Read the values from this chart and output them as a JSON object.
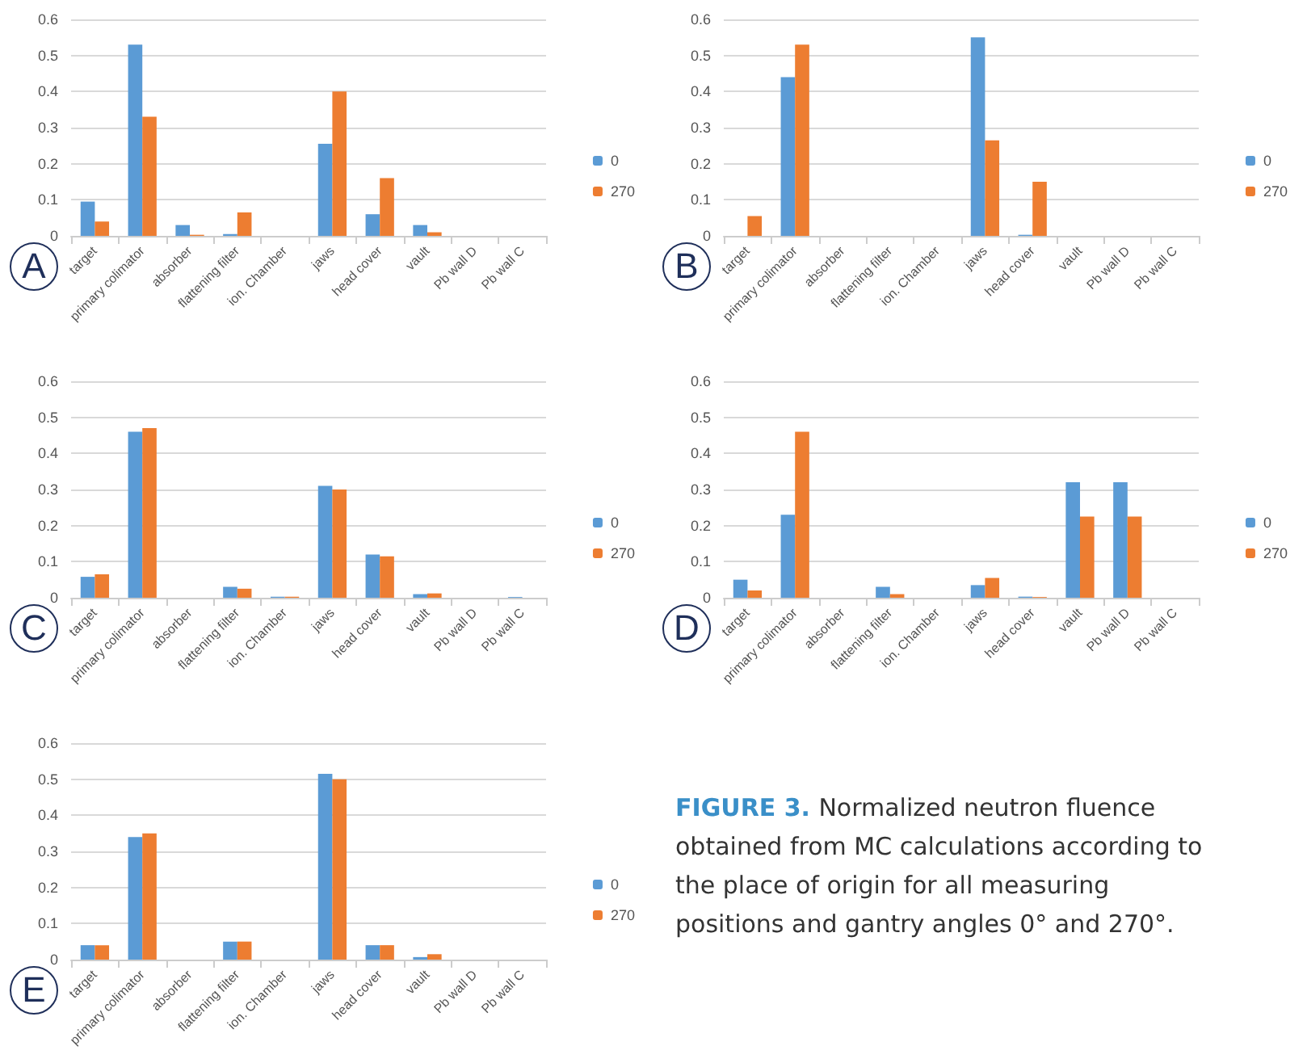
{
  "chart_data": [
    {
      "type": "bar",
      "title": "A",
      "categories": [
        "target",
        "primary colimator",
        "absorber",
        "flattening filter",
        "ion. Chamber",
        "jaws",
        "head cover",
        "vault",
        "Pb wall D",
        "Pb wall C"
      ],
      "series": [
        {
          "name": "0",
          "color": "#5b9bd5",
          "values": [
            0.095,
            0.53,
            0.03,
            0.005,
            0,
            0.255,
            0.06,
            0.03,
            0,
            0
          ]
        },
        {
          "name": "270",
          "color": "#ed7d31",
          "values": [
            0.04,
            0.33,
            0.003,
            0.065,
            0,
            0.4,
            0.16,
            0.01,
            0,
            0
          ]
        }
      ],
      "ylim": [
        0,
        0.6
      ],
      "yticks": [
        0,
        0.1,
        0.2,
        0.3,
        0.4,
        0.5,
        0.6
      ],
      "grid": "y",
      "legend": "right"
    },
    {
      "type": "bar",
      "title": "B",
      "categories": [
        "target",
        "primary colimator",
        "absorber",
        "flattening filter",
        "ion. Chamber",
        "jaws",
        "head cover",
        "vault",
        "Pb wall D",
        "Pb wall C"
      ],
      "series": [
        {
          "name": "0",
          "color": "#5b9bd5",
          "values": [
            0,
            0.44,
            0,
            0,
            0,
            0.55,
            0.003,
            0,
            0,
            0
          ]
        },
        {
          "name": "270",
          "color": "#ed7d31",
          "values": [
            0.055,
            0.53,
            0,
            0,
            0,
            0.265,
            0.15,
            0,
            0,
            0
          ]
        }
      ],
      "ylim": [
        0,
        0.6
      ],
      "yticks": [
        0,
        0.1,
        0.2,
        0.3,
        0.4,
        0.5,
        0.6
      ],
      "grid": "y",
      "legend": "right"
    },
    {
      "type": "bar",
      "title": "C",
      "categories": [
        "target",
        "primary colimator",
        "absorber",
        "flattening filter",
        "ion. Chamber",
        "jaws",
        "head cover",
        "vault",
        "Pb wall D",
        "Pb wall C"
      ],
      "series": [
        {
          "name": "0",
          "color": "#5b9bd5",
          "values": [
            0.058,
            0.46,
            0,
            0.03,
            0.003,
            0.31,
            0.12,
            0.01,
            0,
            0.002
          ]
        },
        {
          "name": "270",
          "color": "#ed7d31",
          "values": [
            0.065,
            0.47,
            0,
            0.025,
            0.003,
            0.3,
            0.115,
            0.012,
            0,
            0
          ]
        }
      ],
      "ylim": [
        0,
        0.6
      ],
      "yticks": [
        0,
        0.1,
        0.2,
        0.3,
        0.4,
        0.5,
        0.6
      ],
      "grid": "y",
      "legend": "right"
    },
    {
      "type": "bar",
      "title": "D",
      "categories": [
        "target",
        "primary colimator",
        "absorber",
        "flattening filter",
        "ion. Chamber",
        "jaws",
        "head cover",
        "vault",
        "Pb wall D",
        "Pb wall C"
      ],
      "series": [
        {
          "name": "0",
          "color": "#5b9bd5",
          "values": [
            0.05,
            0.23,
            0,
            0.03,
            0,
            0.035,
            0.003,
            0.32,
            0.32,
            0
          ]
        },
        {
          "name": "270",
          "color": "#ed7d31",
          "values": [
            0.02,
            0.46,
            0,
            0.01,
            0,
            0.055,
            0.002,
            0.225,
            0.225,
            0
          ]
        }
      ],
      "ylim": [
        0,
        0.6
      ],
      "yticks": [
        0,
        0.1,
        0.2,
        0.3,
        0.4,
        0.5,
        0.6
      ],
      "grid": "y",
      "legend": "right"
    },
    {
      "type": "bar",
      "title": "E",
      "categories": [
        "target",
        "primary colimator",
        "absorber",
        "flattening filter",
        "ion. Chamber",
        "jaws",
        "head cover",
        "vault",
        "Pb wall D",
        "Pb wall C"
      ],
      "series": [
        {
          "name": "0",
          "color": "#5b9bd5",
          "values": [
            0.04,
            0.34,
            0,
            0.05,
            0,
            0.515,
            0.04,
            0.007,
            0,
            0
          ]
        },
        {
          "name": "270",
          "color": "#ed7d31",
          "values": [
            0.04,
            0.35,
            0,
            0.05,
            0,
            0.5,
            0.04,
            0.015,
            0,
            0
          ]
        }
      ],
      "ylim": [
        0,
        0.6
      ],
      "yticks": [
        0,
        0.1,
        0.2,
        0.3,
        0.4,
        0.5,
        0.6
      ],
      "grid": "y",
      "legend": "right"
    },
    {
      "type": "other",
      "title": "FIGURE 3.",
      "annotations": [
        "Normalized neutron fluence obtained from MC calculations according to the place of origin for all measuring positions and gantry angles 0° and 270°."
      ]
    }
  ]
}
